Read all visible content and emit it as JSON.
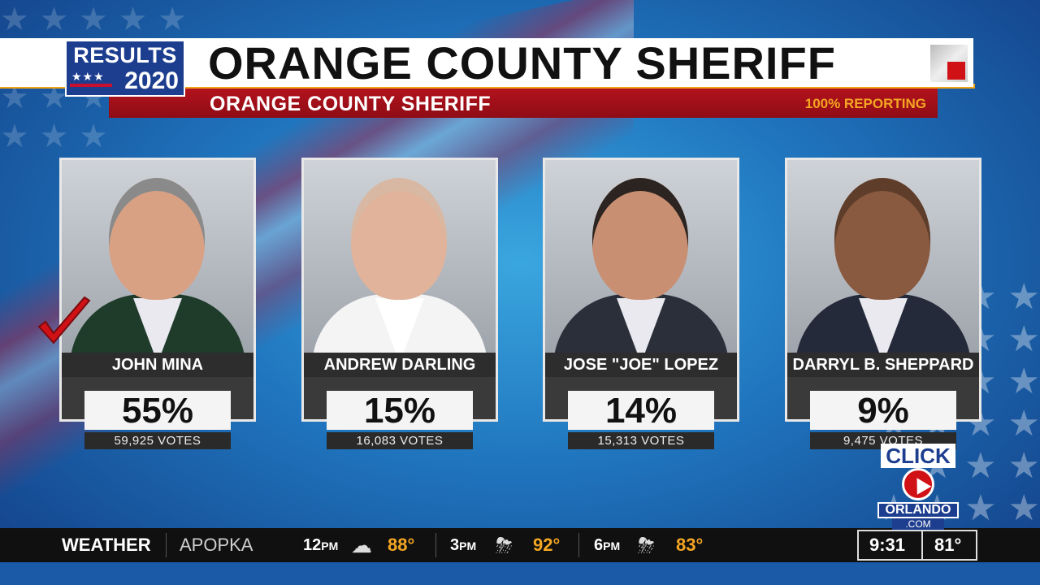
{
  "header": {
    "logo_results": "RESULTS",
    "logo_stars": "★★★",
    "logo_year": "2020",
    "title": "ORANGE COUNTY SHERIFF",
    "subtitle": "ORANGE COUNTY SHERIFF",
    "reporting": "100% REPORTING"
  },
  "candidates": [
    {
      "name": "JOHN MINA",
      "percent": "55%",
      "votes": "59,925 VOTES",
      "winner": true,
      "shirt_color": "#1f3b2a",
      "skin": "#d9a184",
      "hair": "#8a8a8a"
    },
    {
      "name": "ANDREW DARLING",
      "percent": "15%",
      "votes": "16,083 VOTES",
      "winner": false,
      "shirt_color": "#f4f4f4",
      "skin": "#e0b39a",
      "hair": "#d8b8a2"
    },
    {
      "name": "JOSE \"JOE\" LOPEZ",
      "percent": "14%",
      "votes": "15,313 VOTES",
      "winner": false,
      "shirt_color": "#2a2f3a",
      "skin": "#c98f72",
      "hair": "#2b2420"
    },
    {
      "name": "DARRYL B. SHEPPARD",
      "percent": "9%",
      "votes": "9,475 VOTES",
      "winner": false,
      "shirt_color": "#252a3a",
      "skin": "#8a5a40",
      "hair": "#5e3d2a"
    }
  ],
  "station_logo": {
    "click": "CLICK",
    "orlando": "ORLANDO",
    "com": ".COM"
  },
  "ticker": {
    "label": "WEATHER",
    "city": "APOPKA",
    "forecast": [
      {
        "hour": "12",
        "ampm": "PM",
        "icon": "cloud-icon",
        "glyph": "☁",
        "temp": "88°"
      },
      {
        "hour": "3",
        "ampm": "PM",
        "icon": "thunderstorm-icon",
        "glyph": "⛈",
        "temp": "92°"
      },
      {
        "hour": "6",
        "ampm": "PM",
        "icon": "thunderstorm-icon",
        "glyph": "⛈",
        "temp": "83°"
      }
    ],
    "clock": "9:31",
    "current_temp": "81°"
  },
  "colors": {
    "brand_blue": "#1d3e8f",
    "accent_red": "#b3121d",
    "accent_orange": "#f5a623",
    "check_red": "#d01217"
  }
}
